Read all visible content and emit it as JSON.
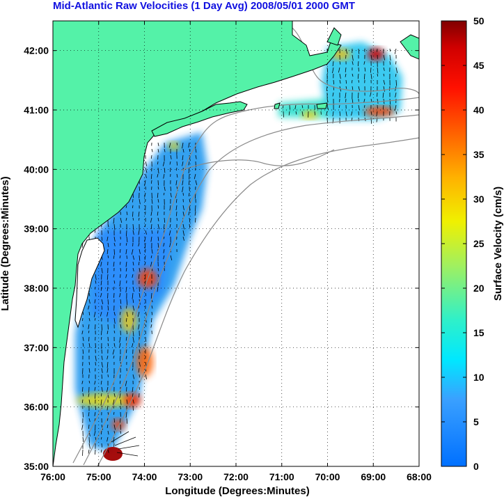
{
  "title": "Mid-Atlantic Raw Velocities (1 Day Avg) 2008/05/01 2000 GMT",
  "x_axis": {
    "label": "Longitude (Degrees:Minutes)",
    "ticks": [
      "76:00",
      "75:00",
      "74:00",
      "73:00",
      "72:00",
      "71:00",
      "70:00",
      "69:00",
      "68:00"
    ],
    "range": [
      -76,
      -68
    ]
  },
  "y_axis": {
    "label": "Latitude (Degrees:Minutes)",
    "ticks": [
      "35:00",
      "36:00",
      "37:00",
      "38:00",
      "39:00",
      "40:00",
      "41:00",
      "42:00"
    ],
    "range": [
      35,
      42.5
    ]
  },
  "colorbar": {
    "label": "Surface Velocity (cm/s)",
    "ticks": [
      "0",
      "5",
      "10",
      "15",
      "20",
      "25",
      "30",
      "35",
      "40",
      "45",
      "50"
    ],
    "range": [
      0,
      50
    ]
  },
  "colors": {
    "land": "#54f2a8",
    "coastline": "#000000",
    "bathymetry": "#8a8a8a",
    "title": "#1010e0",
    "grid": "#000000"
  },
  "map": {
    "grid": "dotted",
    "features": [
      "land",
      "coastline",
      "bathymetry-contours",
      "surface-velocity-field",
      "velocity-vectors"
    ]
  }
}
